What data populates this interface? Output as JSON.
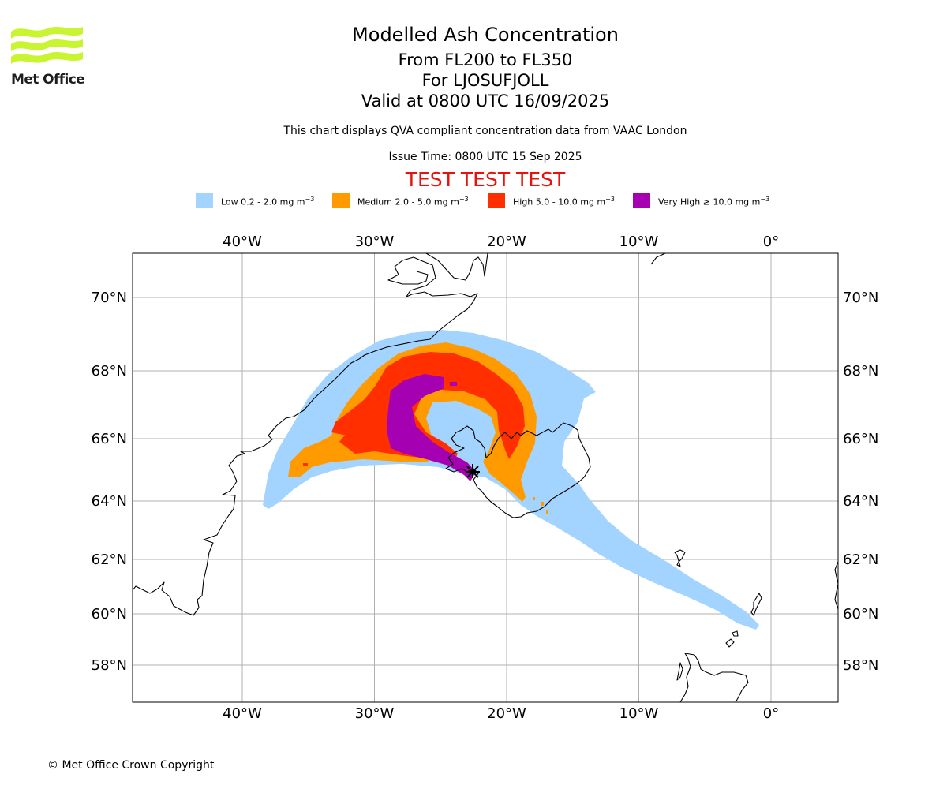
{
  "logo": {
    "text": "Met Office",
    "color": "#c8f52f"
  },
  "header": {
    "title": "Modelled Ash Concentration",
    "levels": "From FL200 to FL350",
    "volcano": "For LJOSUFJOLL",
    "valid": "Valid at 0800 UTC 16/09/2025",
    "note": "This chart displays QVA compliant concentration data from VAAC London",
    "issue": "Issue Time: 0800 UTC 15 Sep 2025",
    "test_banner": "TEST TEST TEST"
  },
  "legend": [
    {
      "label": "Low 0.2 - 2.0 mg m",
      "unit_exp": "−3",
      "color": "#a3d4ff"
    },
    {
      "label": "Medium 2.0 - 5.0 mg m",
      "unit_exp": "−3",
      "color": "#ff9a00"
    },
    {
      "label": "High 5.0 - 10.0 mg m",
      "unit_exp": "−3",
      "color": "#ff2f00"
    },
    {
      "label": "Very High  ≥  10.0 mg m",
      "unit_exp": "−3",
      "color": "#a600b3"
    }
  ],
  "map": {
    "lon_ticks": [
      {
        "value": -40,
        "label": "40°W"
      },
      {
        "value": -30,
        "label": "30°W"
      },
      {
        "value": -20,
        "label": "20°W"
      },
      {
        "value": -10,
        "label": "10°W"
      },
      {
        "value": 0,
        "label": "0°"
      }
    ],
    "lat_ticks": [
      {
        "value": 70,
        "label": "70°N"
      },
      {
        "value": 68,
        "label": "68°N"
      },
      {
        "value": 66,
        "label": "66°N"
      },
      {
        "value": 64,
        "label": "64°N"
      },
      {
        "value": 62,
        "label": "62°N"
      },
      {
        "value": 60,
        "label": "60°N"
      },
      {
        "value": 58,
        "label": "58°N"
      }
    ],
    "volcano_marker": "volcano symbol"
  },
  "footer": {
    "copyright": "© Met Office Crown Copyright"
  }
}
